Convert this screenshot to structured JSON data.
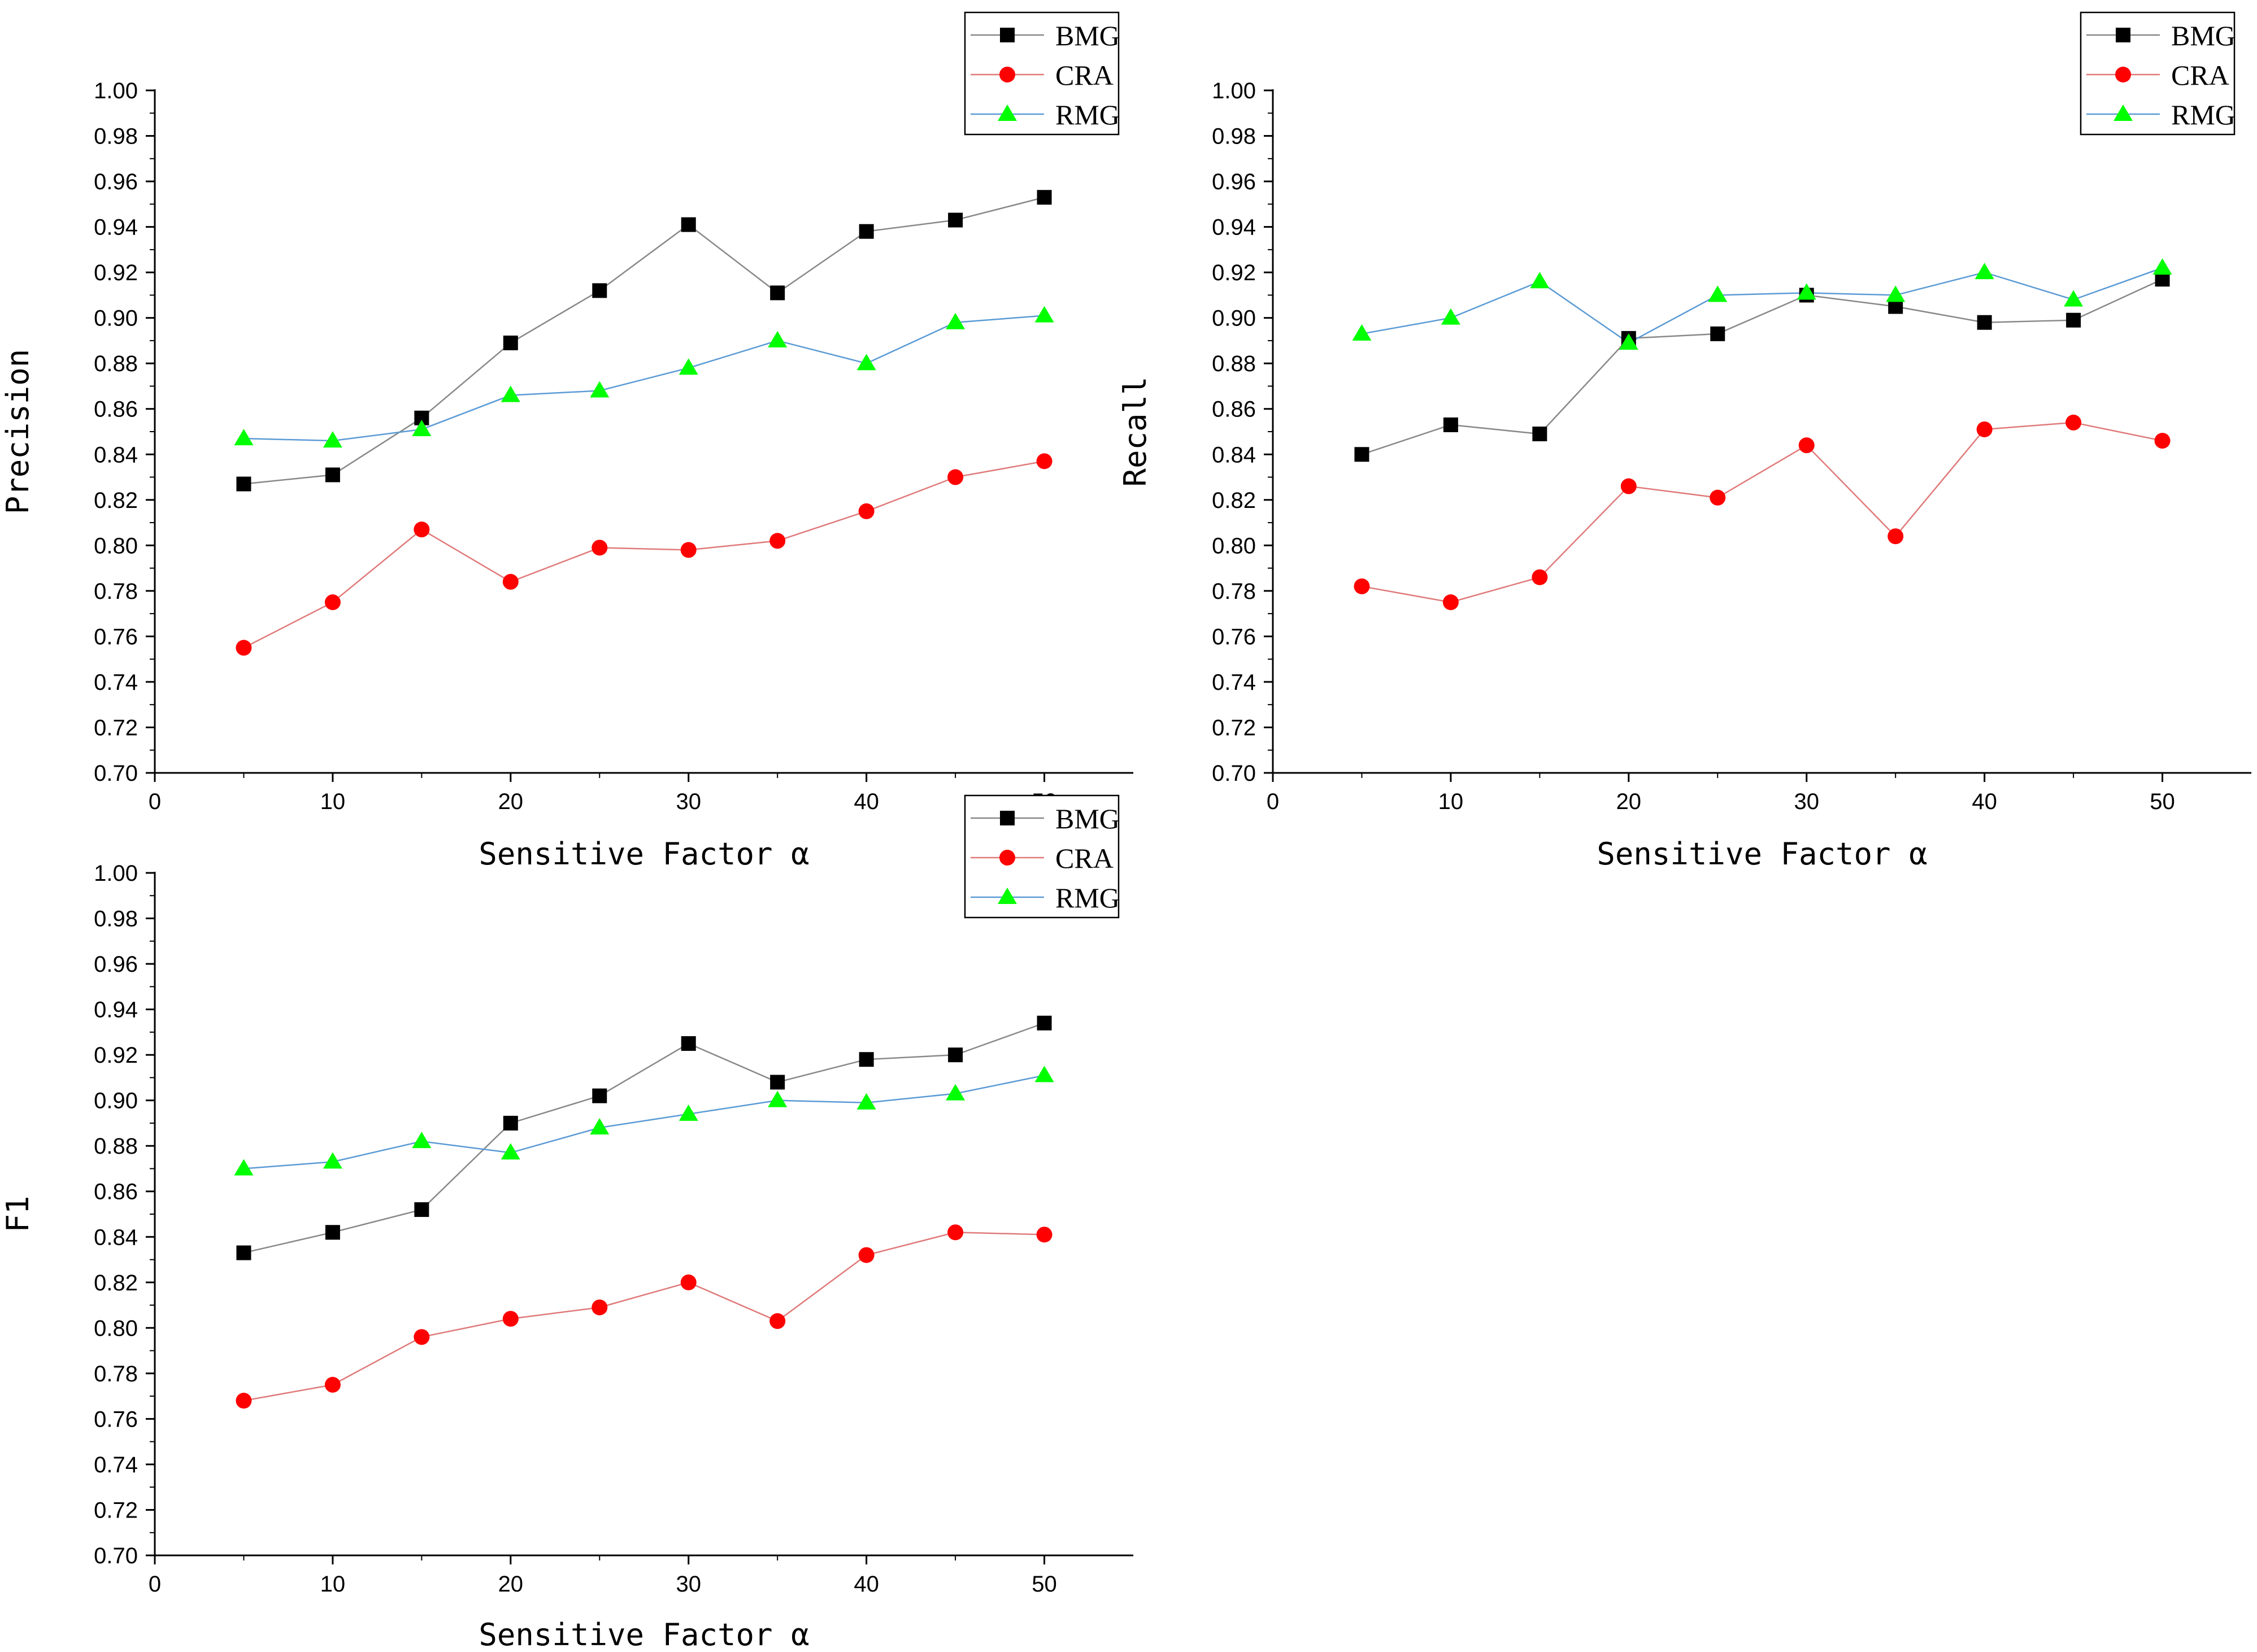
{
  "figure": {
    "series_colors": {
      "BMG": "#000000",
      "CRA": "#ff0000",
      "RMG": "#00ff00"
    },
    "line_colors": {
      "BMG": "#888888",
      "CRA": "#e07a7a",
      "RMG": "#5b9bd5"
    },
    "series_markers": {
      "BMG": "square",
      "CRA": "circle",
      "RMG": "triangle"
    }
  },
  "chart_data": [
    {
      "type": "line",
      "ylabel": "Precision",
      "xlabel": "Sensitive Factor α",
      "xlim": [
        0,
        55
      ],
      "ylim": [
        0.7,
        1.0
      ],
      "xticks": [
        "0",
        "10",
        "20",
        "30",
        "40",
        "50"
      ],
      "yticks": [
        "0.70",
        "0.72",
        "0.74",
        "0.76",
        "0.78",
        "0.80",
        "0.82",
        "0.84",
        "0.86",
        "0.88",
        "0.90",
        "0.92",
        "0.94",
        "0.96",
        "0.98",
        "1.00"
      ],
      "legend": [
        "BMG",
        "CRA",
        "RMG"
      ],
      "x": [
        5,
        10,
        15,
        20,
        25,
        30,
        35,
        40,
        45,
        50
      ],
      "series": [
        {
          "name": "BMG",
          "values": [
            0.827,
            0.831,
            0.856,
            0.889,
            0.912,
            0.941,
            0.911,
            0.938,
            0.943,
            0.953
          ]
        },
        {
          "name": "CRA",
          "values": [
            0.755,
            0.775,
            0.807,
            0.784,
            0.799,
            0.798,
            0.802,
            0.815,
            0.83,
            0.837
          ]
        },
        {
          "name": "RMG",
          "values": [
            0.847,
            0.846,
            0.851,
            0.866,
            0.868,
            0.878,
            0.89,
            0.88,
            0.898,
            0.901
          ]
        }
      ]
    },
    {
      "type": "line",
      "ylabel": "Recall",
      "xlabel": "Sensitive Factor α",
      "xlim": [
        0,
        55
      ],
      "ylim": [
        0.7,
        1.0
      ],
      "xticks": [
        "0",
        "10",
        "20",
        "30",
        "40",
        "50"
      ],
      "yticks": [
        "0.70",
        "0.72",
        "0.74",
        "0.76",
        "0.78",
        "0.80",
        "0.82",
        "0.84",
        "0.86",
        "0.88",
        "0.90",
        "0.92",
        "0.94",
        "0.96",
        "0.98",
        "1.00"
      ],
      "legend": [
        "BMG",
        "CRA",
        "RMG"
      ],
      "x": [
        5,
        10,
        15,
        20,
        25,
        30,
        35,
        40,
        45,
        50
      ],
      "series": [
        {
          "name": "BMG",
          "values": [
            0.84,
            0.853,
            0.849,
            0.891,
            0.893,
            0.91,
            0.905,
            0.898,
            0.899,
            0.917
          ]
        },
        {
          "name": "CRA",
          "values": [
            0.782,
            0.775,
            0.786,
            0.826,
            0.821,
            0.844,
            0.804,
            0.851,
            0.854,
            0.846
          ]
        },
        {
          "name": "RMG",
          "values": [
            0.893,
            0.9,
            0.916,
            0.889,
            0.91,
            0.911,
            0.91,
            0.92,
            0.908,
            0.922
          ]
        }
      ]
    },
    {
      "type": "line",
      "ylabel": "F1",
      "xlabel": "Sensitive Factor α",
      "xlim": [
        0,
        55
      ],
      "ylim": [
        0.7,
        1.0
      ],
      "xticks": [
        "0",
        "10",
        "20",
        "30",
        "40",
        "50"
      ],
      "yticks": [
        "0.70",
        "0.72",
        "0.74",
        "0.76",
        "0.78",
        "0.80",
        "0.82",
        "0.84",
        "0.86",
        "0.88",
        "0.90",
        "0.92",
        "0.94",
        "0.96",
        "0.98",
        "1.00"
      ],
      "legend": [
        "BMG",
        "CRA",
        "RMG"
      ],
      "x": [
        5,
        10,
        15,
        20,
        25,
        30,
        35,
        40,
        45,
        50
      ],
      "series": [
        {
          "name": "BMG",
          "values": [
            0.833,
            0.842,
            0.852,
            0.89,
            0.902,
            0.925,
            0.908,
            0.918,
            0.92,
            0.934
          ]
        },
        {
          "name": "CRA",
          "values": [
            0.768,
            0.775,
            0.796,
            0.804,
            0.809,
            0.82,
            0.803,
            0.832,
            0.842,
            0.841
          ]
        },
        {
          "name": "RMG",
          "values": [
            0.87,
            0.873,
            0.882,
            0.877,
            0.888,
            0.894,
            0.9,
            0.899,
            0.903,
            0.911
          ]
        }
      ]
    }
  ]
}
